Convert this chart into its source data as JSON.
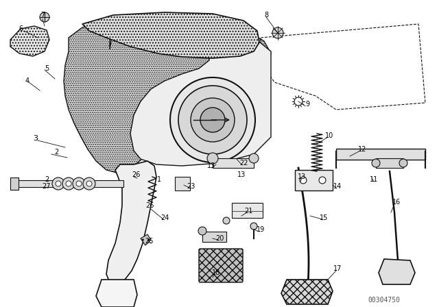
{
  "bg_color": "#ffffff",
  "text_color": "#000000",
  "watermark": "00304750",
  "fig_width": 6.4,
  "fig_height": 4.48,
  "dpi": 100,
  "labels": [
    [
      "7",
      57,
      28
    ],
    [
      "6",
      38,
      45
    ],
    [
      "5",
      60,
      100
    ],
    [
      "4",
      40,
      118
    ],
    [
      "3",
      55,
      195
    ],
    [
      "2",
      98,
      210
    ],
    [
      "2",
      73,
      258
    ],
    [
      "1",
      222,
      255
    ],
    [
      "26",
      217,
      297
    ],
    [
      "8",
      390,
      22
    ],
    [
      "9",
      430,
      148
    ],
    [
      "10",
      475,
      193
    ],
    [
      "12",
      522,
      213
    ],
    [
      "13",
      430,
      255
    ],
    [
      "13",
      352,
      252
    ],
    [
      "11",
      540,
      255
    ],
    [
      "14",
      490,
      268
    ],
    [
      "15",
      468,
      310
    ],
    [
      "16",
      570,
      290
    ],
    [
      "11",
      566,
      268
    ],
    [
      "22",
      348,
      235
    ],
    [
      "13",
      308,
      240
    ],
    [
      "23",
      276,
      268
    ],
    [
      "21",
      357,
      300
    ],
    [
      "20",
      314,
      342
    ],
    [
      "19",
      376,
      330
    ],
    [
      "18",
      310,
      395
    ],
    [
      "24",
      235,
      310
    ],
    [
      "25",
      218,
      345
    ],
    [
      "27",
      70,
      268
    ],
    [
      "26",
      198,
      252
    ],
    [
      "17",
      488,
      388
    ]
  ]
}
